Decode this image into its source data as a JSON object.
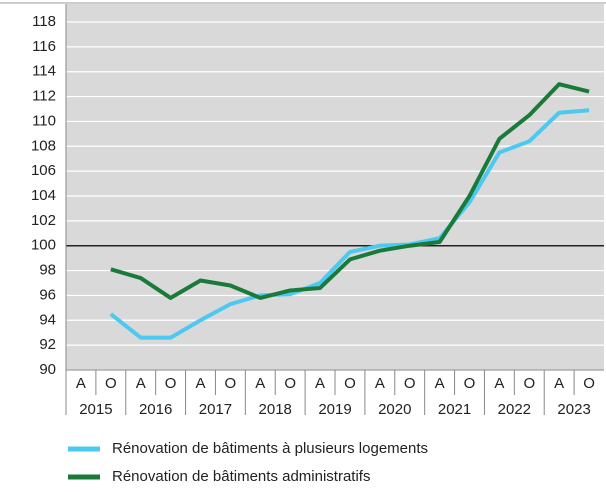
{
  "chart_data": {
    "type": "line",
    "categories": [
      "A",
      "O",
      "A",
      "O",
      "A",
      "O",
      "A",
      "O",
      "A",
      "O",
      "A",
      "O",
      "A",
      "O",
      "A",
      "O",
      "A",
      "O"
    ],
    "years": [
      "2015",
      "2016",
      "2017",
      "2018",
      "2019",
      "2020",
      "2021",
      "2022",
      "2023"
    ],
    "series": [
      {
        "name": "Rénovation de bâtiments à plusieurs logements",
        "color": "#4dc8f0",
        "values": [
          null,
          94.5,
          92.6,
          92.6,
          94.0,
          95.3,
          96.0,
          96.1,
          97.0,
          99.5,
          100.0,
          100.1,
          100.6,
          103.5,
          107.5,
          108.4,
          110.7,
          110.9
        ]
      },
      {
        "name": "Rénovation de bâtiments administratifs",
        "color": "#1a7a3a",
        "values": [
          null,
          98.1,
          97.4,
          95.8,
          97.2,
          96.8,
          95.8,
          96.4,
          96.6,
          98.9,
          99.6,
          100.0,
          100.3,
          104.0,
          108.6,
          110.5,
          113.0,
          112.4
        ]
      }
    ],
    "ylim": [
      90,
      118
    ],
    "yticks": [
      90,
      92,
      94,
      96,
      98,
      100,
      102,
      104,
      106,
      108,
      110,
      112,
      114,
      116,
      118
    ],
    "reference_line": 100,
    "grid": true
  }
}
